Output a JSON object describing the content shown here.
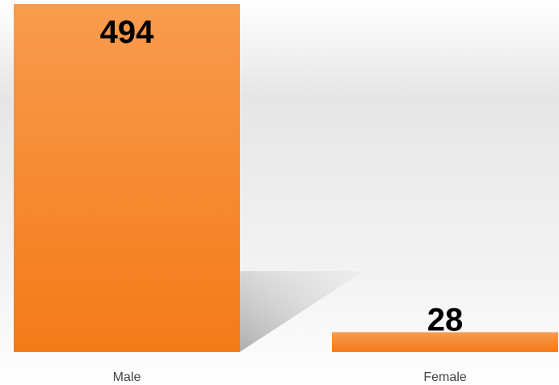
{
  "chart_data": {
    "type": "bar",
    "categories": [
      "Male",
      "Female"
    ],
    "values": [
      494,
      28
    ],
    "color": "#f5811f"
  }
}
